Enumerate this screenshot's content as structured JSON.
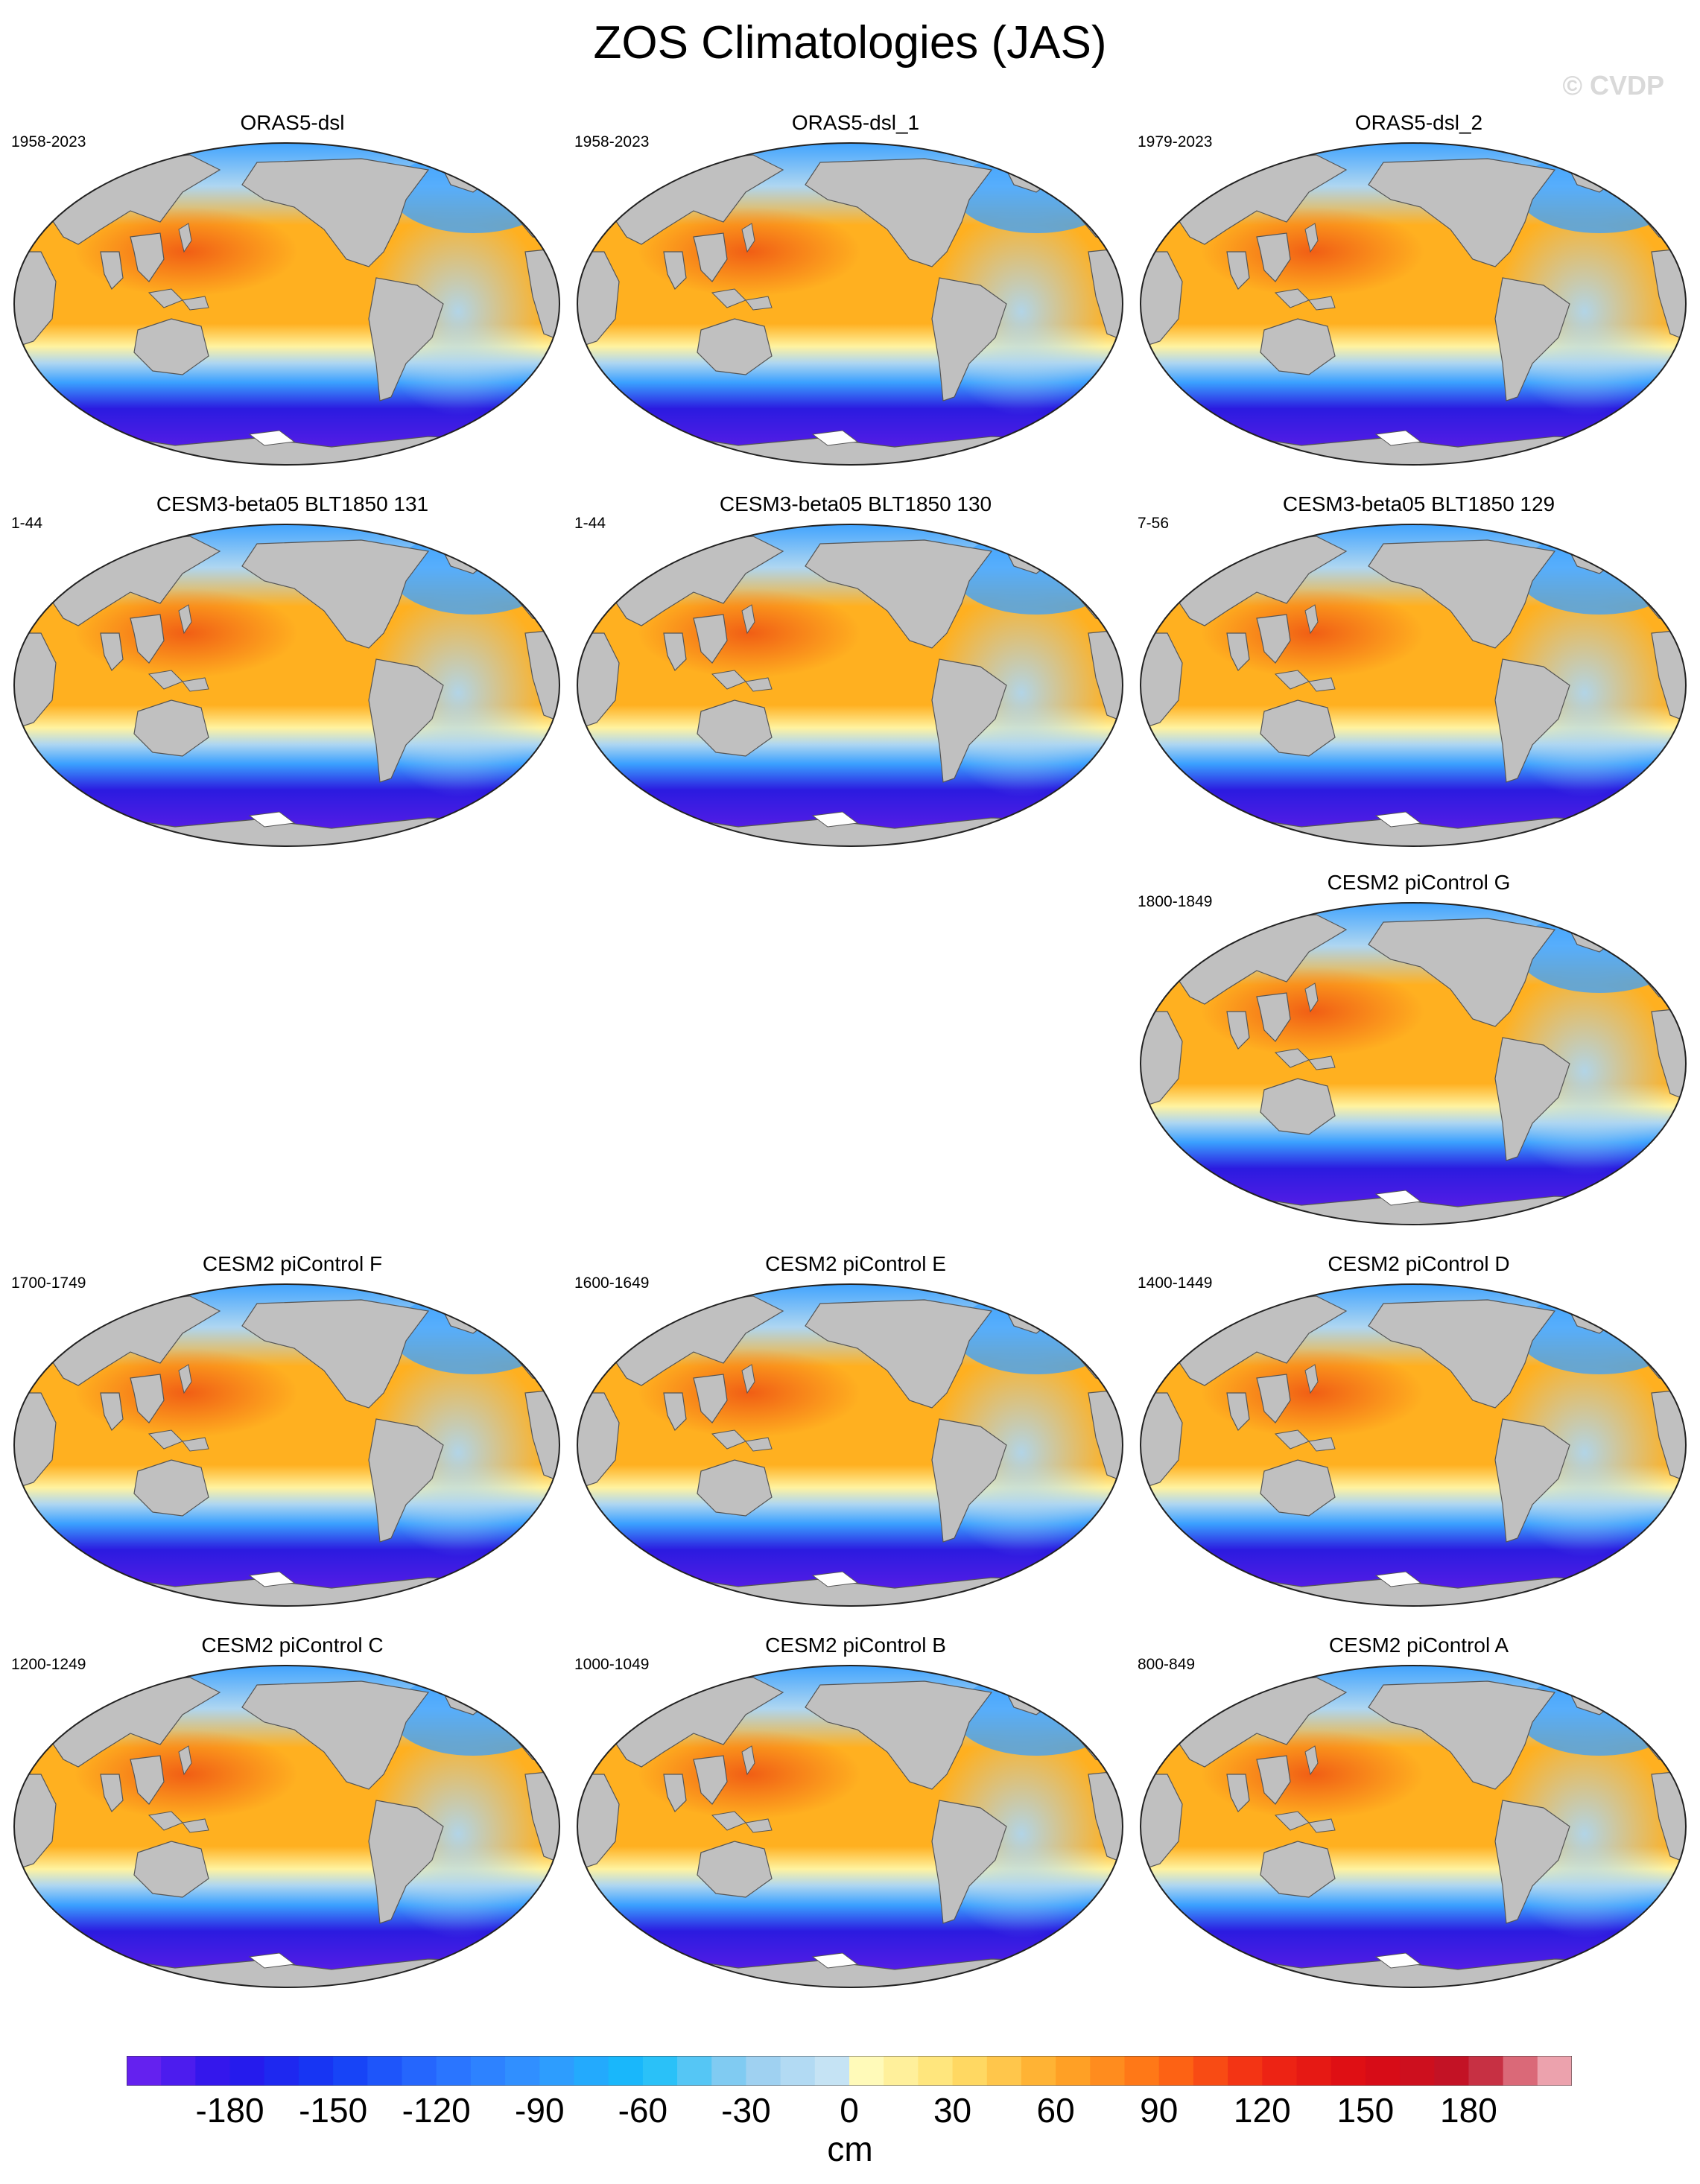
{
  "title": "ZOS Climatologies (JAS)",
  "watermark": "© CVDP",
  "colors": {
    "land": "#c0c0c0",
    "coast": "#555555",
    "ocean_warm_peak": "#f05a14",
    "ocean_warm": "#ffb020",
    "ocean_pale": "#fff3a0",
    "ocean_cool": "#aed6f1",
    "ocean_blue": "#3aa0ff",
    "ocean_deep": "#2b1be0",
    "ocean_violet": "#6a1ee8"
  },
  "panels": [
    {
      "title": "ORAS5-dsl",
      "years": "1958-2023"
    },
    {
      "title": "ORAS5-dsl_1",
      "years": "1958-2023"
    },
    {
      "title": "ORAS5-dsl_2",
      "years": "1979-2023"
    },
    {
      "title": "CESM3-beta05 BLT1850 131",
      "years": "1-44"
    },
    {
      "title": "CESM3-beta05 BLT1850 130",
      "years": "1-44"
    },
    {
      "title": "CESM3-beta05 BLT1850 129",
      "years": "7-56"
    },
    {
      "title": "CESM2 piControl G",
      "years": "1800-1849"
    },
    {
      "title": "CESM2 piControl F",
      "years": "1700-1749"
    },
    {
      "title": "CESM2 piControl E",
      "years": "1600-1649"
    },
    {
      "title": "CESM2 piControl D",
      "years": "1400-1449"
    },
    {
      "title": "CESM2 piControl C",
      "years": "1200-1249"
    },
    {
      "title": "CESM2 piControl B",
      "years": "1000-1049"
    },
    {
      "title": "CESM2 piControl A",
      "years": "800-849"
    }
  ],
  "colorbar": {
    "min": -210,
    "max": 210,
    "step": 10,
    "ticks": [
      "-180",
      "-150",
      "-120",
      "-90",
      "-60",
      "-30",
      "0",
      "30",
      "60",
      "90",
      "120",
      "150",
      "180"
    ],
    "tick_values": [
      -180,
      -150,
      -120,
      -90,
      -60,
      -30,
      0,
      30,
      60,
      90,
      120,
      150,
      180
    ],
    "unit": "cm"
  }
}
